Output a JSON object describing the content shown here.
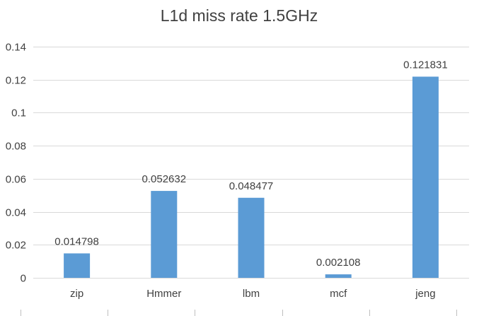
{
  "chart_data": {
    "type": "bar",
    "title": "L1d miss rate 1.5GHz",
    "xlabel": "",
    "ylabel": "",
    "categories": [
      "zip",
      "Hmmer",
      "lbm",
      "mcf",
      "jeng"
    ],
    "values": [
      0.014798,
      0.052632,
      0.048477,
      0.002108,
      0.121831
    ],
    "data_labels": [
      "0.014798",
      "0.052632",
      "0.048477",
      "0.002108",
      "0.121831"
    ],
    "ylim": [
      0,
      0.14
    ],
    "yticks": [
      0,
      0.02,
      0.04,
      0.06,
      0.08,
      0.1,
      0.12,
      0.14
    ],
    "ytick_labels": [
      "0",
      "0.02",
      "0.04",
      "0.06",
      "0.08",
      "0.1",
      "0.12",
      "0.14"
    ],
    "grid": true,
    "legend": "none",
    "bar_color": "#5b9bd5"
  }
}
